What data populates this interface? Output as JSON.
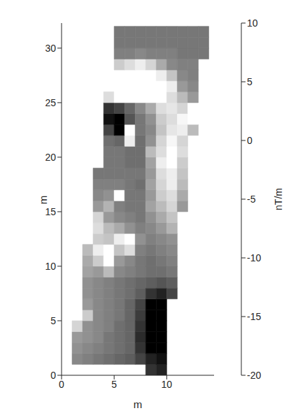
{
  "chart_data": {
    "type": "heatmap",
    "x_label": "m",
    "y_label": "m",
    "xlim": [
      0,
      14.5
    ],
    "xticks": [
      0,
      5,
      10
    ],
    "ylim": [
      0,
      32.3
    ],
    "yticks": [
      0,
      5,
      10,
      15,
      20,
      25,
      30
    ],
    "cells": {
      "x_bins": [
        0,
        1,
        2,
        3,
        4,
        5,
        6,
        7,
        8,
        9,
        10,
        11,
        12,
        13,
        14
      ],
      "y_bins": [
        0,
        1,
        2,
        3,
        4,
        5,
        6,
        7,
        8,
        9,
        10,
        11,
        12,
        13,
        14,
        15,
        16,
        17,
        18,
        19,
        20,
        21,
        22,
        23,
        24,
        25,
        26,
        27,
        28,
        29,
        30,
        31,
        32
      ],
      "values": [
        [
          null,
          null,
          null,
          null,
          null,
          null,
          null,
          null,
          -14,
          -16,
          null,
          null,
          null,
          null
        ],
        [
          null,
          -4,
          -5,
          -6,
          -7,
          -8,
          -9,
          -12,
          -16,
          -18,
          null,
          null,
          null,
          null
        ],
        [
          null,
          -3,
          -4,
          -5,
          -6,
          -7,
          -8,
          -14,
          -20,
          -20,
          null,
          null,
          null,
          null
        ],
        [
          null,
          -2,
          -3,
          -4,
          -6,
          -7,
          -8,
          -15,
          -20,
          -20,
          null,
          null,
          null,
          null
        ],
        [
          null,
          5,
          -3,
          -4,
          -5,
          -7,
          -8,
          -14,
          -20,
          -20,
          null,
          null,
          null,
          null
        ],
        [
          null,
          null,
          4,
          -4,
          -5,
          -6,
          -8,
          -13,
          -20,
          -20,
          null,
          null,
          null,
          null
        ],
        [
          null,
          null,
          -2,
          -4,
          -5,
          -6,
          -8,
          -12,
          -20,
          -20,
          null,
          null,
          null,
          null
        ],
        [
          null,
          null,
          -3,
          -4,
          -5,
          -6,
          -7,
          -9,
          -14,
          -16,
          -12,
          null,
          null,
          null
        ],
        [
          null,
          null,
          -3,
          -4,
          -5,
          -6,
          -7,
          -8,
          -9,
          -10,
          -9,
          null,
          null,
          null
        ],
        [
          null,
          null,
          -1,
          -2,
          2,
          -4,
          -5,
          -6,
          -7,
          -7,
          -6,
          null,
          null,
          null
        ],
        [
          null,
          null,
          0,
          4,
          10,
          -2,
          -4,
          -6,
          -7,
          -6,
          -5,
          null,
          null,
          null
        ],
        [
          null,
          null,
          2,
          8,
          10,
          3,
          6,
          -5,
          -6,
          -5,
          -4,
          null,
          null,
          null
        ],
        [
          null,
          null,
          null,
          4,
          3,
          8,
          10,
          -3,
          -5,
          -4,
          -3,
          null,
          null,
          null
        ],
        [
          null,
          null,
          null,
          6,
          2,
          0,
          -3,
          -5,
          -4,
          -2,
          1,
          null,
          null,
          null
        ],
        [
          null,
          null,
          null,
          5,
          -2,
          -4,
          -5,
          -6,
          -3,
          0,
          3,
          null,
          null,
          null
        ],
        [
          null,
          null,
          null,
          -2,
          1,
          -5,
          -6,
          -6,
          -1,
          2,
          5,
          -2,
          null,
          null
        ],
        [
          null,
          null,
          null,
          -4,
          -3,
          10,
          -6,
          -6,
          -2,
          4,
          6,
          0,
          null,
          null
        ],
        [
          null,
          null,
          null,
          -5,
          -5,
          -5,
          -6,
          -7,
          -1,
          5,
          8,
          2,
          null,
          null
        ],
        [
          null,
          null,
          null,
          -6,
          -6,
          -6,
          -6,
          -6,
          -2,
          6,
          8,
          3,
          null,
          null
        ],
        [
          null,
          null,
          null,
          null,
          -6,
          -6,
          -7,
          -7,
          -1,
          8,
          10,
          4,
          null,
          null
        ],
        [
          null,
          null,
          null,
          null,
          -6,
          -6,
          -7,
          -7,
          2,
          6,
          10,
          6,
          null,
          null
        ],
        [
          null,
          null,
          null,
          null,
          -7,
          -8,
          8,
          -7,
          -3,
          5,
          9,
          5,
          null,
          null
        ],
        [
          null,
          null,
          null,
          null,
          -12,
          -20,
          10,
          -6,
          -4,
          3,
          7,
          8,
          2,
          null
        ],
        [
          null,
          null,
          null,
          null,
          -18,
          -20,
          -10,
          -6,
          -3,
          4,
          6,
          9,
          10,
          null
        ],
        [
          null,
          null,
          null,
          null,
          -14,
          -12,
          -8,
          -4,
          0,
          6,
          7,
          5,
          10,
          null
        ],
        [
          null,
          null,
          null,
          null,
          6,
          10,
          10,
          10,
          10,
          10,
          6,
          2,
          -2,
          null
        ],
        [
          null,
          null,
          null,
          null,
          null,
          10,
          10,
          10,
          10,
          10,
          8,
          -2,
          -4,
          null
        ],
        [
          null,
          null,
          null,
          null,
          null,
          10,
          10,
          10,
          10,
          8,
          3,
          -4,
          -5,
          null
        ],
        [
          null,
          null,
          null,
          null,
          null,
          4,
          6,
          8,
          5,
          0,
          -4,
          -5,
          -5,
          null
        ],
        [
          null,
          null,
          null,
          null,
          null,
          -5,
          -5,
          -4,
          -5,
          -5,
          -5,
          -6,
          -6,
          -6
        ],
        [
          null,
          null,
          null,
          null,
          null,
          -6,
          -6,
          -6,
          -6,
          -6,
          -6,
          -6,
          -6,
          -6
        ],
        [
          null,
          null,
          null,
          null,
          null,
          -6,
          -6,
          -6,
          -6,
          -6,
          -6,
          -6,
          -6,
          -6
        ]
      ]
    },
    "colorbar": {
      "range": [
        -20,
        10
      ],
      "ticks": [
        -20,
        -15,
        -10,
        -5,
        0,
        5,
        10
      ],
      "label": "nT/m"
    }
  }
}
